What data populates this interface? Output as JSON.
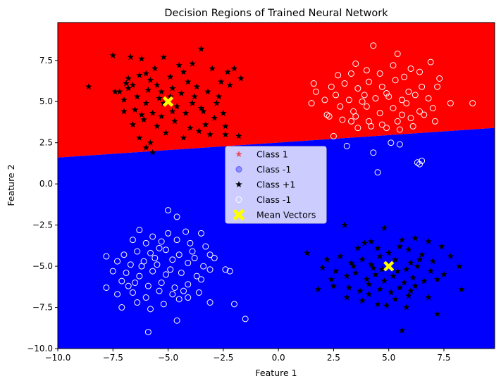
{
  "chart_data": {
    "type": "scatter",
    "title": "Decision Regions of Trained Neural Network",
    "xlabel": "Feature 1",
    "ylabel": "Feature 2",
    "xlim": [
      -10,
      9.8
    ],
    "ylim": [
      -10,
      9.8
    ],
    "x_ticks": [
      -10.0,
      -7.5,
      -5.0,
      -2.5,
      0.0,
      2.5,
      5.0,
      7.5
    ],
    "y_ticks": [
      -10.0,
      -7.5,
      -5.0,
      -2.5,
      0.0,
      2.5,
      5.0,
      7.5
    ],
    "x_tick_labels": [
      "−10.0",
      "−7.5",
      "−5.0",
      "−2.5",
      "0.0",
      "2.5",
      "5.0",
      "7.5"
    ],
    "y_tick_labels": [
      "−10.0",
      "−7.5",
      "−5.0",
      "−2.5",
      "0.0",
      "2.5",
      "5.0",
      "7.5"
    ],
    "grid": false,
    "legend_position": "center",
    "regions": {
      "boundary": [
        [
          -10,
          1.6
        ],
        [
          9.8,
          3.4
        ]
      ],
      "above_color": "#ff0000",
      "below_color": "#0000ff"
    },
    "legend": [
      {
        "label": "Class 1",
        "marker": "star",
        "color": "#e8505b"
      },
      {
        "label": "Class -1",
        "marker": "circle",
        "color": "#5b5bff"
      },
      {
        "label": "Class +1",
        "marker": "star",
        "color": "#000000"
      },
      {
        "label": "Class -1",
        "marker": "circle-open",
        "color": "#ffffff"
      },
      {
        "label": "Mean Vectors",
        "marker": "x",
        "color": "#ffff00"
      }
    ],
    "series": [
      {
        "marker": "star",
        "color": "#000000",
        "points": [
          [
            -5.0,
            5.0
          ],
          [
            -7.5,
            7.8
          ],
          [
            -6.7,
            7.7
          ],
          [
            -6.2,
            7.6
          ],
          [
            -5.2,
            7.7
          ],
          [
            -4.5,
            7.2
          ],
          [
            -3.5,
            8.2
          ],
          [
            -2.0,
            7.0
          ],
          [
            -2.3,
            6.8
          ],
          [
            -1.7,
            6.4
          ],
          [
            -8.6,
            5.9
          ],
          [
            -7.4,
            5.6
          ],
          [
            -6.9,
            6.1
          ],
          [
            -6.3,
            6.6
          ],
          [
            -5.8,
            6.3
          ],
          [
            -5.3,
            5.6
          ],
          [
            -4.8,
            5.8
          ],
          [
            -4.1,
            6.2
          ],
          [
            -3.8,
            5.3
          ],
          [
            -3.2,
            5.6
          ],
          [
            -2.8,
            4.9
          ],
          [
            -2.2,
            6.0
          ],
          [
            -7.0,
            5.1
          ],
          [
            -6.5,
            4.5
          ],
          [
            -6.0,
            4.9
          ],
          [
            -5.7,
            4.3
          ],
          [
            -4.6,
            4.7
          ],
          [
            -4.2,
            4.3
          ],
          [
            -3.9,
            4.9
          ],
          [
            -3.4,
            4.4
          ],
          [
            -2.9,
            4.0
          ],
          [
            -2.5,
            4.3
          ],
          [
            -6.6,
            3.6
          ],
          [
            -6.1,
            3.9
          ],
          [
            -5.5,
            3.5
          ],
          [
            -5.1,
            3.1
          ],
          [
            -4.7,
            3.8
          ],
          [
            -4.0,
            3.4
          ],
          [
            -3.6,
            3.2
          ],
          [
            -3.1,
            3.0
          ],
          [
            -6.3,
            2.8
          ],
          [
            -5.8,
            2.5
          ],
          [
            -6.0,
            2.2
          ],
          [
            -5.7,
            1.9
          ],
          [
            -4.3,
            2.8
          ],
          [
            -3.3,
            3.6
          ],
          [
            -2.4,
            3.5
          ],
          [
            -1.8,
            2.9
          ],
          [
            -2.4,
            3.0
          ],
          [
            -7.2,
            5.6
          ],
          [
            -6.8,
            5.8
          ],
          [
            -6.4,
            5.3
          ],
          [
            -5.9,
            5.7
          ],
          [
            -5.5,
            6.0
          ],
          [
            -5.2,
            4.9
          ],
          [
            -4.9,
            5.3
          ],
          [
            -4.4,
            5.5
          ],
          [
            -3.7,
            5.9
          ],
          [
            -6.6,
            6.0
          ],
          [
            -6.0,
            6.7
          ],
          [
            -5.6,
            7.0
          ],
          [
            -4.9,
            6.5
          ],
          [
            -4.3,
            6.8
          ],
          [
            -3.9,
            7.3
          ],
          [
            -3.0,
            7.0
          ],
          [
            -2.6,
            6.2
          ],
          [
            -7.0,
            4.4
          ],
          [
            -6.2,
            4.2
          ],
          [
            -5.3,
            4.1
          ],
          [
            -4.8,
            4.4
          ],
          [
            -3.5,
            4.6
          ],
          [
            -2.7,
            5.3
          ],
          [
            -6.8,
            6.4
          ],
          [
            -5.4,
            5.2
          ],
          [
            5.0,
            -5.0
          ],
          [
            3.0,
            -2.5
          ],
          [
            4.8,
            -2.7
          ],
          [
            6.2,
            -3.3
          ],
          [
            6.8,
            -3.5
          ],
          [
            7.4,
            -3.8
          ],
          [
            3.9,
            -3.6
          ],
          [
            4.5,
            -3.9
          ],
          [
            5.5,
            -3.8
          ],
          [
            5.9,
            -4.0
          ],
          [
            6.5,
            -4.3
          ],
          [
            7.0,
            -4.7
          ],
          [
            7.8,
            -4.4
          ],
          [
            1.3,
            -4.2
          ],
          [
            2.2,
            -4.6
          ],
          [
            2.8,
            -4.4
          ],
          [
            3.3,
            -4.8
          ],
          [
            3.8,
            -4.6
          ],
          [
            4.2,
            -4.9
          ],
          [
            4.6,
            -4.4
          ],
          [
            5.3,
            -4.6
          ],
          [
            5.8,
            -5.2
          ],
          [
            6.3,
            -5.0
          ],
          [
            6.9,
            -5.3
          ],
          [
            8.2,
            -5.0
          ],
          [
            2.0,
            -5.1
          ],
          [
            2.6,
            -5.3
          ],
          [
            3.1,
            -5.6
          ],
          [
            3.5,
            -5.4
          ],
          [
            4.0,
            -5.8
          ],
          [
            4.4,
            -5.5
          ],
          [
            4.8,
            -5.9
          ],
          [
            5.2,
            -5.6
          ],
          [
            5.7,
            -6.0
          ],
          [
            6.1,
            -5.7
          ],
          [
            6.6,
            -5.9
          ],
          [
            7.2,
            -5.8
          ],
          [
            1.8,
            -6.4
          ],
          [
            2.5,
            -6.2
          ],
          [
            3.2,
            -6.3
          ],
          [
            3.7,
            -6.5
          ],
          [
            4.1,
            -6.7
          ],
          [
            4.6,
            -6.4
          ],
          [
            5.1,
            -6.6
          ],
          [
            5.5,
            -6.3
          ],
          [
            6.0,
            -6.5
          ],
          [
            6.8,
            -6.9
          ],
          [
            8.3,
            -6.4
          ],
          [
            3.1,
            -6.9
          ],
          [
            3.8,
            -7.1
          ],
          [
            4.5,
            -7.3
          ],
          [
            5.3,
            -7.0
          ],
          [
            5.8,
            -7.5
          ],
          [
            4.9,
            -7.4
          ],
          [
            7.2,
            -7.9
          ],
          [
            5.6,
            -8.9
          ],
          [
            4.3,
            -5.1
          ],
          [
            5.0,
            -4.2
          ],
          [
            6.4,
            -4.6
          ],
          [
            3.6,
            -3.9
          ],
          [
            4.2,
            -3.5
          ],
          [
            5.6,
            -3.4
          ],
          [
            2.4,
            -5.8
          ],
          [
            6.2,
            -6.2
          ],
          [
            7.5,
            -5.5
          ],
          [
            3.4,
            -5.0
          ],
          [
            4.7,
            -5.2
          ],
          [
            5.4,
            -5.3
          ],
          [
            6.0,
            -4.8
          ],
          [
            4.1,
            -6.1
          ],
          [
            5.9,
            -6.8
          ]
        ]
      },
      {
        "marker": "circle-open",
        "color": "#ffffff",
        "points": [
          [
            4.3,
            8.4
          ],
          [
            5.4,
            7.9
          ],
          [
            3.5,
            7.3
          ],
          [
            6.0,
            7.0
          ],
          [
            6.9,
            7.4
          ],
          [
            2.7,
            6.6
          ],
          [
            3.3,
            6.7
          ],
          [
            4.0,
            6.9
          ],
          [
            4.6,
            6.7
          ],
          [
            5.2,
            7.2
          ],
          [
            5.7,
            6.5
          ],
          [
            6.4,
            6.8
          ],
          [
            7.3,
            6.4
          ],
          [
            1.6,
            6.1
          ],
          [
            2.4,
            5.9
          ],
          [
            3.0,
            6.1
          ],
          [
            3.6,
            5.8
          ],
          [
            4.1,
            6.2
          ],
          [
            4.7,
            5.9
          ],
          [
            5.3,
            6.3
          ],
          [
            5.9,
            5.6
          ],
          [
            6.5,
            5.9
          ],
          [
            7.2,
            5.9
          ],
          [
            1.7,
            5.6
          ],
          [
            2.6,
            5.4
          ],
          [
            3.2,
            5.1
          ],
          [
            3.9,
            5.4
          ],
          [
            4.4,
            5.2
          ],
          [
            5.0,
            5.3
          ],
          [
            5.6,
            5.1
          ],
          [
            6.2,
            5.4
          ],
          [
            6.8,
            5.2
          ],
          [
            7.8,
            4.9
          ],
          [
            8.8,
            4.9
          ],
          [
            1.5,
            4.9
          ],
          [
            2.1,
            5.1
          ],
          [
            2.8,
            4.7
          ],
          [
            3.4,
            4.4
          ],
          [
            4.0,
            4.7
          ],
          [
            4.6,
            4.3
          ],
          [
            5.2,
            4.6
          ],
          [
            5.8,
            4.9
          ],
          [
            6.4,
            4.4
          ],
          [
            7.0,
            4.6
          ],
          [
            2.2,
            4.2
          ],
          [
            2.9,
            3.9
          ],
          [
            3.5,
            4.1
          ],
          [
            4.1,
            3.8
          ],
          [
            4.7,
            3.6
          ],
          [
            5.4,
            3.8
          ],
          [
            6.0,
            4.0
          ],
          [
            6.6,
            4.2
          ],
          [
            7.1,
            3.8
          ],
          [
            3.6,
            3.4
          ],
          [
            4.2,
            3.5
          ],
          [
            4.9,
            3.4
          ],
          [
            5.5,
            3.3
          ],
          [
            6.1,
            3.5
          ],
          [
            2.5,
            2.9
          ],
          [
            3.1,
            2.3
          ],
          [
            4.3,
            1.9
          ],
          [
            5.1,
            2.5
          ],
          [
            5.5,
            2.4
          ],
          [
            6.3,
            1.3
          ],
          [
            6.5,
            1.4
          ],
          [
            6.4,
            1.2
          ],
          [
            4.5,
            0.7
          ],
          [
            2.3,
            4.1
          ],
          [
            3.8,
            5.0
          ],
          [
            4.9,
            5.5
          ],
          [
            5.6,
            4.2
          ],
          [
            3.3,
            3.8
          ],
          [
            -5.0,
            -1.6
          ],
          [
            -4.6,
            -2.0
          ],
          [
            -6.3,
            -2.8
          ],
          [
            -5.7,
            -3.2
          ],
          [
            -5.0,
            -3.0
          ],
          [
            -4.2,
            -2.9
          ],
          [
            -3.5,
            -3.0
          ],
          [
            -6.6,
            -3.4
          ],
          [
            -6.0,
            -3.6
          ],
          [
            -5.3,
            -3.5
          ],
          [
            -4.6,
            -3.4
          ],
          [
            -4.0,
            -3.6
          ],
          [
            -3.3,
            -3.8
          ],
          [
            -7.0,
            -4.3
          ],
          [
            -6.4,
            -4.1
          ],
          [
            -5.8,
            -4.2
          ],
          [
            -5.1,
            -4.0
          ],
          [
            -4.5,
            -4.3
          ],
          [
            -3.8,
            -4.5
          ],
          [
            -3.1,
            -4.3
          ],
          [
            -2.9,
            -4.5
          ],
          [
            -7.8,
            -4.4
          ],
          [
            -7.3,
            -4.7
          ],
          [
            -6.7,
            -4.9
          ],
          [
            -6.1,
            -4.7
          ],
          [
            -5.5,
            -4.9
          ],
          [
            -4.8,
            -4.6
          ],
          [
            -4.1,
            -4.8
          ],
          [
            -3.4,
            -5.0
          ],
          [
            -2.4,
            -5.2
          ],
          [
            -2.2,
            -5.3
          ],
          [
            -7.5,
            -5.3
          ],
          [
            -6.9,
            -5.4
          ],
          [
            -6.3,
            -5.6
          ],
          [
            -5.7,
            -5.3
          ],
          [
            -5.1,
            -5.5
          ],
          [
            -4.4,
            -5.4
          ],
          [
            -3.7,
            -5.6
          ],
          [
            -3.1,
            -5.2
          ],
          [
            -7.1,
            -5.9
          ],
          [
            -6.5,
            -6.0
          ],
          [
            -5.9,
            -6.2
          ],
          [
            -5.3,
            -6.0
          ],
          [
            -4.7,
            -6.3
          ],
          [
            -4.1,
            -6.1
          ],
          [
            -3.5,
            -5.8
          ],
          [
            -7.8,
            -6.3
          ],
          [
            -7.3,
            -6.7
          ],
          [
            -6.6,
            -6.6
          ],
          [
            -6.0,
            -6.9
          ],
          [
            -5.4,
            -6.5
          ],
          [
            -4.8,
            -6.7
          ],
          [
            -4.1,
            -6.9
          ],
          [
            -3.6,
            -6.6
          ],
          [
            -7.1,
            -7.5
          ],
          [
            -6.4,
            -7.2
          ],
          [
            -5.8,
            -7.6
          ],
          [
            -5.2,
            -7.3
          ],
          [
            -4.5,
            -7.0
          ],
          [
            -3.1,
            -7.2
          ],
          [
            -2.0,
            -7.3
          ],
          [
            -4.6,
            -8.3
          ],
          [
            -5.9,
            -9.0
          ],
          [
            -1.5,
            -8.2
          ],
          [
            -5.6,
            -4.5
          ],
          [
            -4.9,
            -5.2
          ],
          [
            -6.2,
            -5.0
          ],
          [
            -3.9,
            -4.1
          ],
          [
            -5.4,
            -3.9
          ],
          [
            -6.8,
            -6.2
          ],
          [
            -4.3,
            -6.5
          ]
        ]
      },
      {
        "marker": "x",
        "color": "#ffff00",
        "points": [
          [
            -5.0,
            5.0
          ],
          [
            5.0,
            -5.0
          ]
        ]
      }
    ]
  }
}
